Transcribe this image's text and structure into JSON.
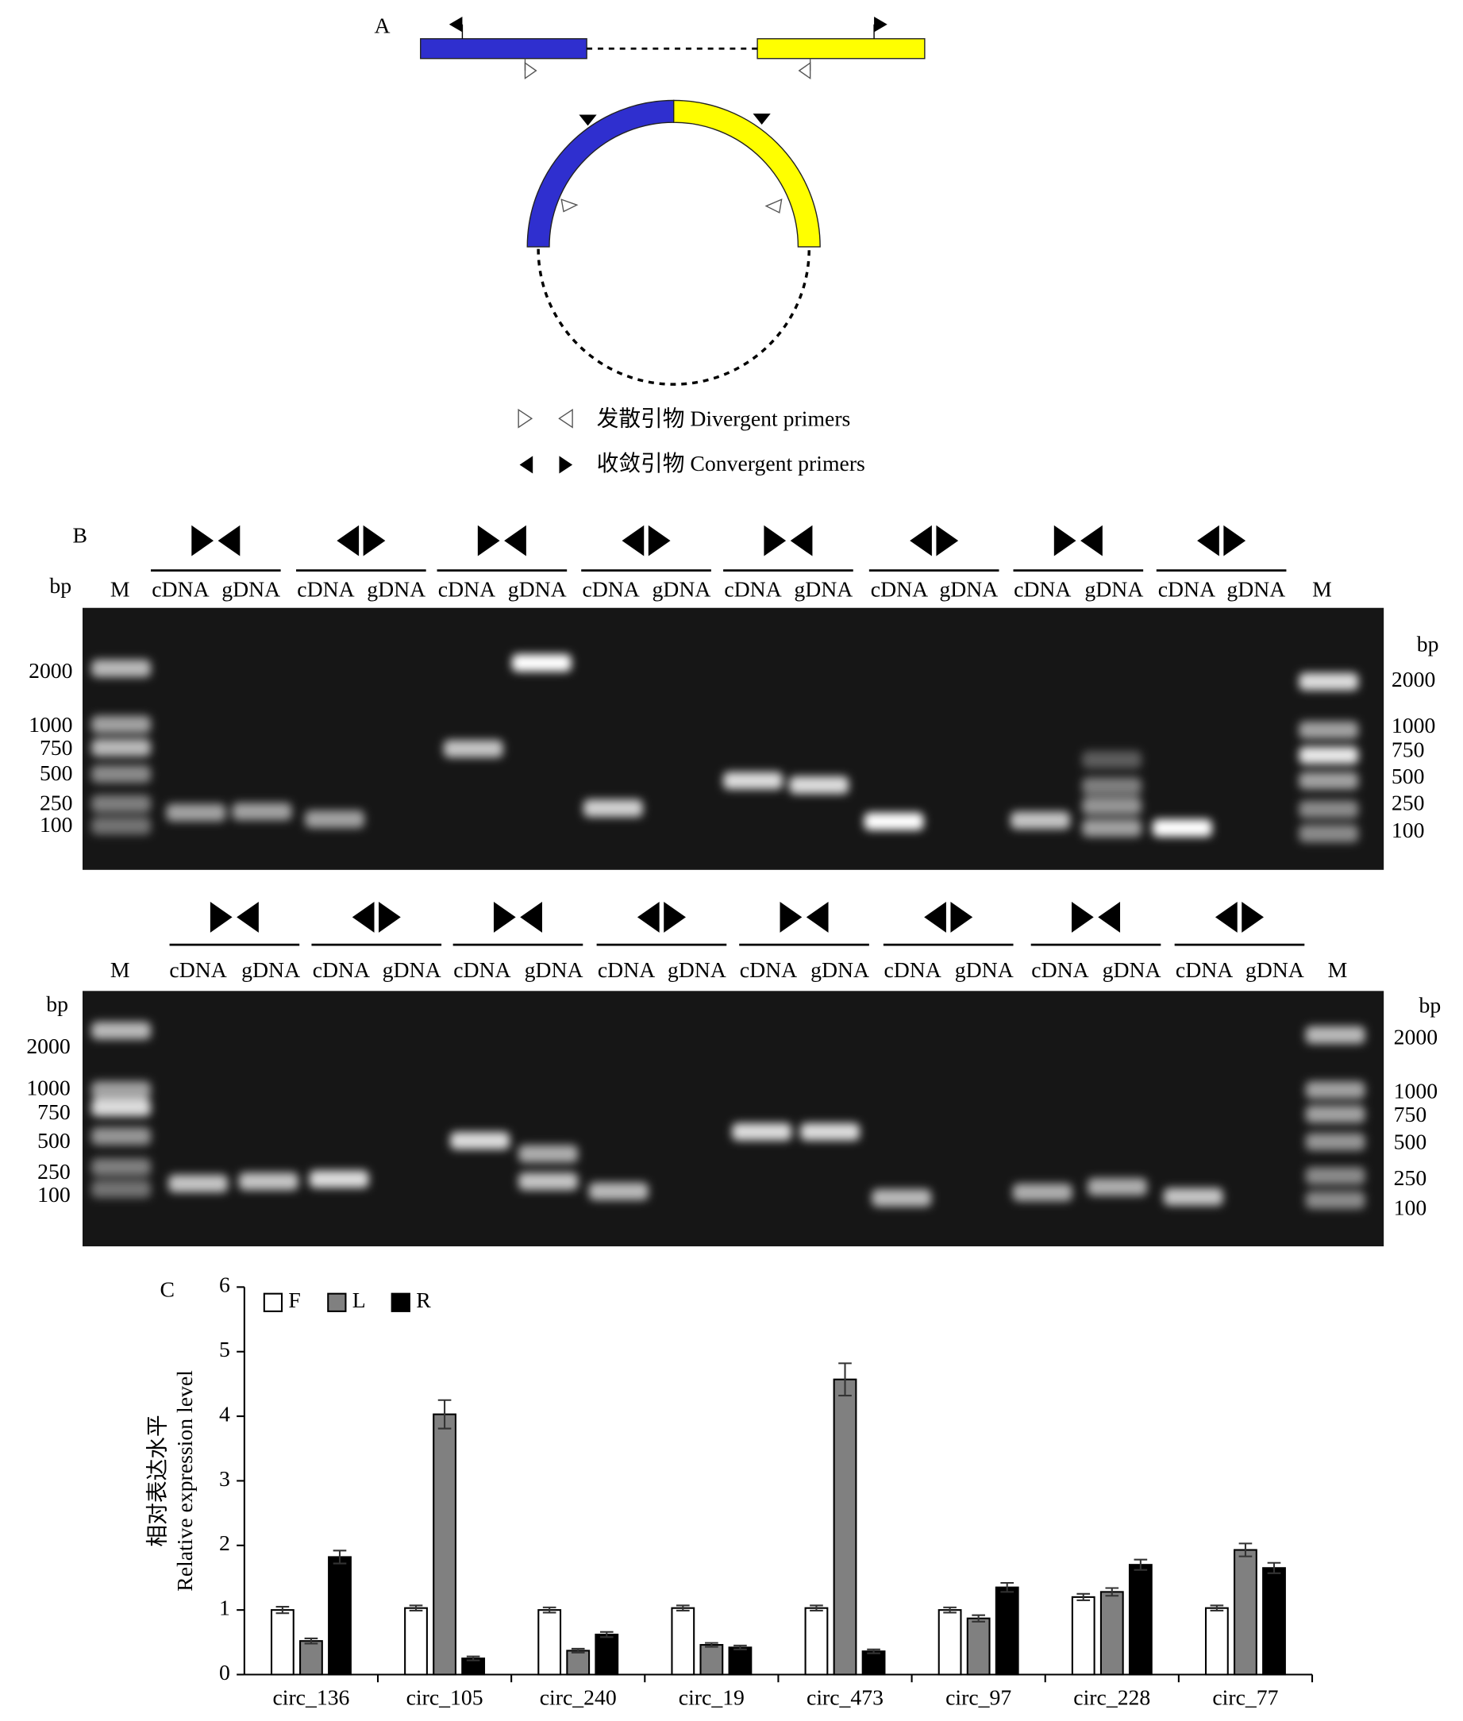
{
  "panel_a": {
    "label": "A",
    "legend": [
      "发散引物 Divergent primers",
      "收敛引物 Convergent primers"
    ]
  },
  "panel_b": {
    "label": "B",
    "gels": [
      {
        "lanes": [
          "M",
          "cDNA",
          "gDNA",
          "cDNA",
          "gDNA",
          "cDNA",
          "gDNA",
          "cDNA",
          "gDNA",
          "cDNA",
          "gDNA",
          "cDNA",
          "gDNA",
          "cDNA",
          "gDNA",
          "cDNA",
          "gDNA",
          "M"
        ],
        "unit_left": "bp",
        "unit_right": "bp",
        "ladder_left": [
          "2000",
          "1000",
          "750",
          "500",
          "250",
          "100"
        ],
        "ladder_right": [
          "2000",
          "1000",
          "750",
          "500",
          "250",
          "100"
        ]
      },
      {
        "lanes": [
          "M",
          "cDNA",
          "gDNA",
          "cDNA",
          "gDNA",
          "cDNA",
          "gDNA",
          "cDNA",
          "gDNA",
          "cDNA",
          "gDNA",
          "cDNA",
          "gDNA",
          "cDNA",
          "gDNA",
          "cDNA",
          "gDNA",
          "M"
        ],
        "unit_left": "bp",
        "unit_right": "bp",
        "ladder_left": [
          "2000",
          "1000",
          "750",
          "500",
          "250",
          "100"
        ],
        "ladder_right": [
          "2000",
          "1000",
          "750",
          "500",
          "250",
          "100"
        ]
      }
    ]
  },
  "chart_data": {
    "type": "bar",
    "label": "C",
    "y_label": [
      "相对表达水平",
      "Relative expression level"
    ],
    "categories": [
      "circ_136",
      "circ_105",
      "circ_240",
      "circ_19",
      "circ_473",
      "circ_97",
      "circ_228",
      "circ_77"
    ],
    "series": [
      {
        "name": "F",
        "color": "#ffffff",
        "values": [
          1.0,
          1.03,
          1.0,
          1.03,
          1.03,
          1.0,
          1.2,
          1.03
        ],
        "errors": [
          0.05,
          0.04,
          0.04,
          0.04,
          0.04,
          0.04,
          0.05,
          0.04
        ]
      },
      {
        "name": "L",
        "color": "#808080",
        "values": [
          0.52,
          4.03,
          0.37,
          0.46,
          4.57,
          0.87,
          1.28,
          1.93
        ],
        "errors": [
          0.04,
          0.22,
          0.03,
          0.03,
          0.25,
          0.05,
          0.06,
          0.1
        ]
      },
      {
        "name": "R",
        "color": "#000000",
        "values": [
          1.82,
          0.25,
          0.62,
          0.42,
          0.36,
          1.35,
          1.7,
          1.65
        ],
        "errors": [
          0.1,
          0.03,
          0.04,
          0.03,
          0.03,
          0.07,
          0.08,
          0.08
        ]
      }
    ],
    "ylim": [
      0,
      6
    ],
    "yticks": [
      0,
      1,
      2,
      3,
      4,
      5,
      6
    ]
  }
}
